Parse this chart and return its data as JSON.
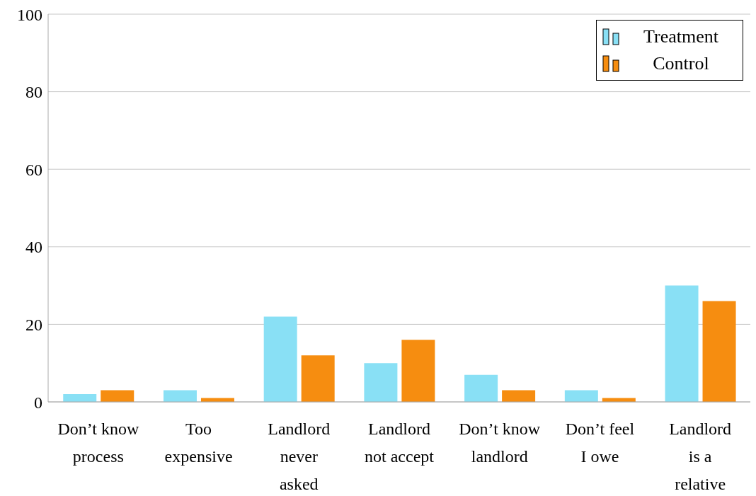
{
  "chart_data": {
    "type": "bar",
    "categories": [
      "Don’t know process",
      "Too expensive",
      "Landlord never asked",
      "Landlord not accept",
      "Don’t know landlord",
      "Don’t feel I owe",
      "Landlord is a relative"
    ],
    "series": [
      {
        "name": "Treatment",
        "color": "#89e0f5",
        "values": [
          2,
          3,
          22,
          10,
          7,
          3,
          30
        ]
      },
      {
        "name": "Control",
        "color": "#f68d10",
        "values": [
          3,
          1,
          12,
          16,
          3,
          1,
          26
        ]
      }
    ],
    "ylim": [
      0,
      100
    ],
    "yticks": [
      0,
      20,
      40,
      60,
      80,
      100
    ],
    "grid": "y",
    "legend": "top right"
  }
}
